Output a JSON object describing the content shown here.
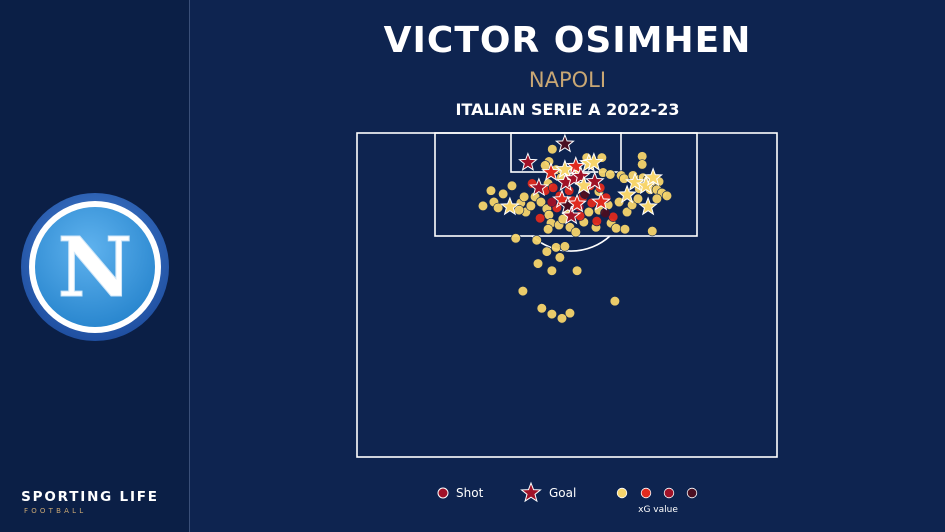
{
  "header": {
    "player": "VICTOR OSIMHEN",
    "team": "NAPOLI",
    "competition": "ITALIAN SERIE A 2022-23"
  },
  "brand": {
    "name": "SPORTING LIFE",
    "sub": "FOOTBALL"
  },
  "logo": {
    "letter": "N"
  },
  "legend": {
    "shot_label": "Shot",
    "goal_label": "Goal",
    "xg_label": "xG value",
    "xg_scale": [
      "#f7d56b",
      "#e02a1e",
      "#a01228",
      "#4a0f22"
    ]
  },
  "colors": {
    "background": "#0e2450",
    "sidebar": "#0b1f46",
    "accent_gold": "#c9a774",
    "pitch_lines": "#ffffff"
  },
  "chart_data": {
    "type": "scatter",
    "title": "VICTOR OSIMHEN",
    "subtitle": "NAPOLI · ITALIAN SERIE A 2022-23",
    "pitch": "half-pitch (attacking half, goal at top)",
    "xg_levels": [
      0.05,
      0.2,
      0.4,
      0.7
    ],
    "shots": [
      {
        "x": 46.5,
        "y": 5.0,
        "xg": 0.05
      },
      {
        "x": 54.7,
        "y": 7.6,
        "xg": 0.05
      },
      {
        "x": 58.3,
        "y": 7.6,
        "xg": 0.05
      },
      {
        "x": 67.9,
        "y": 7.2,
        "xg": 0.05
      },
      {
        "x": 67.9,
        "y": 9.7,
        "xg": 0.05
      },
      {
        "x": 45.7,
        "y": 8.8,
        "xg": 0.05
      },
      {
        "x": 44.8,
        "y": 10.0,
        "xg": 0.05
      },
      {
        "x": 47.4,
        "y": 11.3,
        "xg": 0.05
      },
      {
        "x": 49.0,
        "y": 11.9,
        "xg": 0.05
      },
      {
        "x": 50.7,
        "y": 12.5,
        "xg": 0.05
      },
      {
        "x": 51.8,
        "y": 11.6,
        "xg": 0.05
      },
      {
        "x": 58.6,
        "y": 12.2,
        "xg": 0.05
      },
      {
        "x": 60.3,
        "y": 12.8,
        "xg": 0.05
      },
      {
        "x": 62.9,
        "y": 13.1,
        "xg": 0.05
      },
      {
        "x": 63.6,
        "y": 14.1,
        "xg": 0.05
      },
      {
        "x": 65.7,
        "y": 13.1,
        "xg": 0.05
      },
      {
        "x": 66.9,
        "y": 14.4,
        "xg": 0.05
      },
      {
        "x": 68.1,
        "y": 13.8,
        "xg": 0.05
      },
      {
        "x": 69.3,
        "y": 14.4,
        "xg": 0.05
      },
      {
        "x": 70.1,
        "y": 15.6,
        "xg": 0.05
      },
      {
        "x": 71.9,
        "y": 15.0,
        "xg": 0.05
      },
      {
        "x": 67.2,
        "y": 17.2,
        "xg": 0.05
      },
      {
        "x": 69.8,
        "y": 17.5,
        "xg": 0.05
      },
      {
        "x": 71.4,
        "y": 17.5,
        "xg": 0.05
      },
      {
        "x": 72.6,
        "y": 18.5,
        "xg": 0.05
      },
      {
        "x": 73.8,
        "y": 19.4,
        "xg": 0.05
      },
      {
        "x": 71.4,
        "y": 20.3,
        "xg": 0.05
      },
      {
        "x": 30.0,
        "y": 22.5,
        "xg": 0.05
      },
      {
        "x": 32.6,
        "y": 21.3,
        "xg": 0.05
      },
      {
        "x": 33.6,
        "y": 23.1,
        "xg": 0.05
      },
      {
        "x": 31.9,
        "y": 17.8,
        "xg": 0.05
      },
      {
        "x": 34.8,
        "y": 18.8,
        "xg": 0.05
      },
      {
        "x": 36.9,
        "y": 16.3,
        "xg": 0.05
      },
      {
        "x": 39.0,
        "y": 21.6,
        "xg": 0.05
      },
      {
        "x": 40.2,
        "y": 24.4,
        "xg": 0.05
      },
      {
        "x": 41.4,
        "y": 22.5,
        "xg": 0.05
      },
      {
        "x": 42.4,
        "y": 19.7,
        "xg": 0.05
      },
      {
        "x": 43.8,
        "y": 21.3,
        "xg": 0.05
      },
      {
        "x": 45.2,
        "y": 23.4,
        "xg": 0.05
      },
      {
        "x": 45.7,
        "y": 25.3,
        "xg": 0.05
      },
      {
        "x": 46.2,
        "y": 27.8,
        "xg": 0.05
      },
      {
        "x": 45.5,
        "y": 29.7,
        "xg": 0.05
      },
      {
        "x": 48.1,
        "y": 28.4,
        "xg": 0.05
      },
      {
        "x": 49.0,
        "y": 26.6,
        "xg": 0.05
      },
      {
        "x": 50.7,
        "y": 29.1,
        "xg": 0.05
      },
      {
        "x": 54.0,
        "y": 27.5,
        "xg": 0.05
      },
      {
        "x": 55.2,
        "y": 24.4,
        "xg": 0.05
      },
      {
        "x": 57.6,
        "y": 23.8,
        "xg": 0.05
      },
      {
        "x": 59.8,
        "y": 22.2,
        "xg": 0.05
      },
      {
        "x": 62.4,
        "y": 21.3,
        "xg": 0.05
      },
      {
        "x": 64.3,
        "y": 24.4,
        "xg": 0.05
      },
      {
        "x": 65.5,
        "y": 22.2,
        "xg": 0.05
      },
      {
        "x": 60.5,
        "y": 27.8,
        "xg": 0.05
      },
      {
        "x": 61.7,
        "y": 29.4,
        "xg": 0.05
      },
      {
        "x": 56.9,
        "y": 29.1,
        "xg": 0.05
      },
      {
        "x": 52.1,
        "y": 30.6,
        "xg": 0.05
      },
      {
        "x": 63.8,
        "y": 29.7,
        "xg": 0.05
      },
      {
        "x": 70.3,
        "y": 30.3,
        "xg": 0.05
      },
      {
        "x": 37.8,
        "y": 32.5,
        "xg": 0.05
      },
      {
        "x": 42.8,
        "y": 33.1,
        "xg": 0.05
      },
      {
        "x": 45.2,
        "y": 36.6,
        "xg": 0.05
      },
      {
        "x": 47.4,
        "y": 35.3,
        "xg": 0.05
      },
      {
        "x": 49.5,
        "y": 35.0,
        "xg": 0.05
      },
      {
        "x": 48.3,
        "y": 38.4,
        "xg": 0.05
      },
      {
        "x": 43.1,
        "y": 40.3,
        "xg": 0.05
      },
      {
        "x": 46.4,
        "y": 42.5,
        "xg": 0.05
      },
      {
        "x": 52.4,
        "y": 42.5,
        "xg": 0.05
      },
      {
        "x": 39.5,
        "y": 48.8,
        "xg": 0.05
      },
      {
        "x": 44.0,
        "y": 54.1,
        "xg": 0.05
      },
      {
        "x": 46.4,
        "y": 55.9,
        "xg": 0.05
      },
      {
        "x": 50.7,
        "y": 55.6,
        "xg": 0.05
      },
      {
        "x": 61.4,
        "y": 51.9,
        "xg": 0.05
      },
      {
        "x": 48.8,
        "y": 57.2,
        "xg": 0.05
      },
      {
        "x": 45.5,
        "y": 15.6,
        "xg": 0.05
      },
      {
        "x": 48.6,
        "y": 13.8,
        "xg": 0.05
      },
      {
        "x": 39.8,
        "y": 19.7,
        "xg": 0.05
      },
      {
        "x": 38.6,
        "y": 23.8,
        "xg": 0.05
      },
      {
        "x": 57.6,
        "y": 18.1,
        "xg": 0.05
      },
      {
        "x": 50.2,
        "y": 24.1,
        "xg": 0.05
      },
      {
        "x": 53.8,
        "y": 16.3,
        "xg": 0.05
      },
      {
        "x": 66.9,
        "y": 20.3,
        "xg": 0.05
      },
      {
        "x": 44.8,
        "y": 17.8,
        "xg": 0.2
      },
      {
        "x": 46.7,
        "y": 16.9,
        "xg": 0.2
      },
      {
        "x": 48.3,
        "y": 19.4,
        "xg": 0.2
      },
      {
        "x": 50.5,
        "y": 17.8,
        "xg": 0.2
      },
      {
        "x": 51.4,
        "y": 20.9,
        "xg": 0.2
      },
      {
        "x": 53.8,
        "y": 19.7,
        "xg": 0.2
      },
      {
        "x": 55.5,
        "y": 16.3,
        "xg": 0.2
      },
      {
        "x": 55.9,
        "y": 21.6,
        "xg": 0.2
      },
      {
        "x": 57.9,
        "y": 16.9,
        "xg": 0.2
      },
      {
        "x": 59.3,
        "y": 20.0,
        "xg": 0.2
      },
      {
        "x": 43.6,
        "y": 26.3,
        "xg": 0.2
      },
      {
        "x": 47.6,
        "y": 23.1,
        "xg": 0.2
      },
      {
        "x": 53.1,
        "y": 25.6,
        "xg": 0.2
      },
      {
        "x": 57.1,
        "y": 27.2,
        "xg": 0.2
      },
      {
        "x": 41.7,
        "y": 15.6,
        "xg": 0.2
      },
      {
        "x": 61.0,
        "y": 25.9,
        "xg": 0.2
      },
      {
        "x": 50.7,
        "y": 14.4,
        "xg": 0.4
      },
      {
        "x": 52.9,
        "y": 22.8,
        "xg": 0.4
      },
      {
        "x": 46.4,
        "y": 21.3,
        "xg": 0.4
      },
      {
        "x": 59.1,
        "y": 24.7,
        "xg": 0.7
      },
      {
        "x": 54.3,
        "y": 18.8,
        "xg": 0.7
      }
    ],
    "goals": [
      {
        "x": 49.5,
        "y": 3.4,
        "xg": 0.7
      },
      {
        "x": 40.7,
        "y": 9.1,
        "xg": 0.4
      },
      {
        "x": 49.5,
        "y": 11.3,
        "xg": 0.05
      },
      {
        "x": 52.1,
        "y": 10.3,
        "xg": 0.2
      },
      {
        "x": 55.2,
        "y": 9.4,
        "xg": 0.05
      },
      {
        "x": 56.4,
        "y": 9.1,
        "xg": 0.05
      },
      {
        "x": 46.2,
        "y": 12.2,
        "xg": 0.2
      },
      {
        "x": 49.7,
        "y": 15.3,
        "xg": 0.4
      },
      {
        "x": 51.7,
        "y": 14.1,
        "xg": 0.4
      },
      {
        "x": 53.3,
        "y": 13.4,
        "xg": 0.4
      },
      {
        "x": 54.0,
        "y": 16.3,
        "xg": 0.05
      },
      {
        "x": 56.6,
        "y": 15.0,
        "xg": 0.4
      },
      {
        "x": 43.3,
        "y": 16.9,
        "xg": 0.4
      },
      {
        "x": 48.8,
        "y": 20.6,
        "xg": 0.2
      },
      {
        "x": 50.2,
        "y": 22.5,
        "xg": 0.7
      },
      {
        "x": 51.0,
        "y": 25.6,
        "xg": 0.4
      },
      {
        "x": 52.4,
        "y": 21.9,
        "xg": 0.2
      },
      {
        "x": 58.1,
        "y": 21.3,
        "xg": 0.2
      },
      {
        "x": 36.4,
        "y": 22.8,
        "xg": 0.05
      },
      {
        "x": 66.2,
        "y": 15.3,
        "xg": 0.05
      },
      {
        "x": 68.8,
        "y": 16.3,
        "xg": 0.05
      },
      {
        "x": 70.5,
        "y": 13.8,
        "xg": 0.05
      },
      {
        "x": 69.3,
        "y": 22.8,
        "xg": 0.05
      },
      {
        "x": 64.3,
        "y": 19.1,
        "xg": 0.05
      }
    ]
  }
}
